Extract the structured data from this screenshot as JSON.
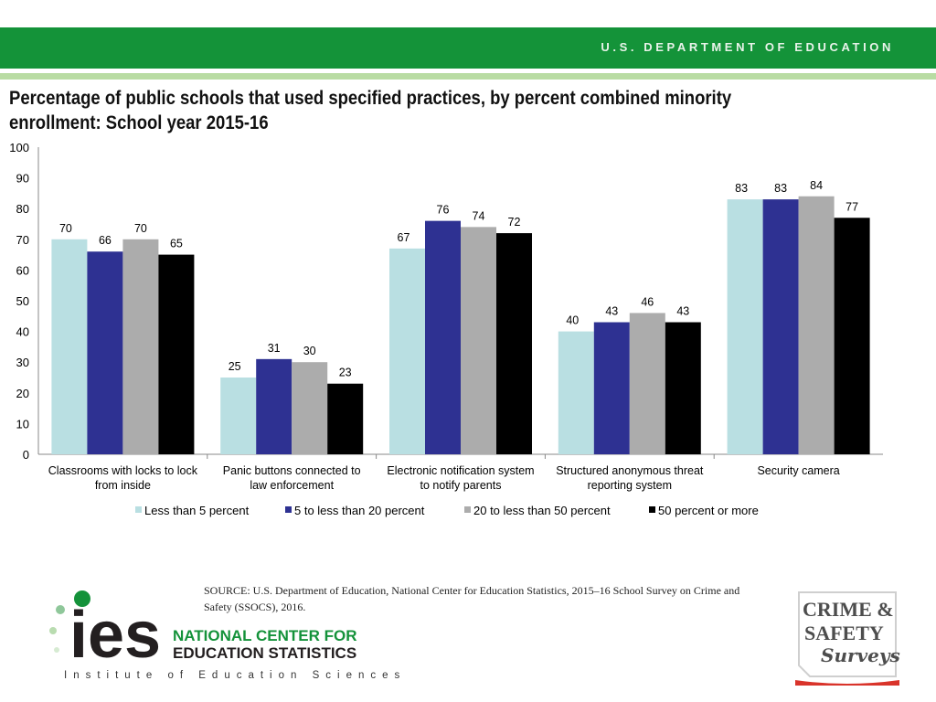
{
  "header": {
    "department": "U.S. DEPARTMENT OF EDUCATION"
  },
  "title": "Percentage of public schools that used specified practices, by percent combined minority enrollment: School year 2015-16",
  "chart_data": {
    "type": "bar",
    "title": "Percentage of public schools that used specified practices, by percent combined minority enrollment: School year 2015-16",
    "xlabel": "",
    "ylabel": "",
    "ylim": [
      0,
      100
    ],
    "yticks": [
      0,
      10,
      20,
      30,
      40,
      50,
      60,
      70,
      80,
      90,
      100
    ],
    "grid": false,
    "legend_position": "bottom",
    "categories": [
      [
        "Classrooms with locks to lock",
        "from inside"
      ],
      [
        "Panic buttons connected to",
        "law enforcement"
      ],
      [
        "Electronic notification system",
        "to notify parents"
      ],
      [
        "Structured anonymous threat",
        "reporting system"
      ],
      [
        "Security camera"
      ]
    ],
    "series": [
      {
        "name": "Less than 5 percent",
        "color": "#b9dfe2",
        "values": [
          70,
          25,
          67,
          40,
          83
        ]
      },
      {
        "name": "5 to less than 20 percent",
        "color": "#2e3192",
        "values": [
          66,
          31,
          76,
          43,
          83
        ]
      },
      {
        "name": "20 to less than 50 percent",
        "color": "#acacac",
        "values": [
          70,
          30,
          74,
          46,
          84
        ]
      },
      {
        "name": "50 percent or more",
        "color": "#000000",
        "values": [
          65,
          23,
          72,
          43,
          77
        ]
      }
    ]
  },
  "source": "SOURCE: U.S. Department of Education, National Center for Education Statistics, 2015–16 School Survey on Crime and Safety (SSOCS), 2016.",
  "logos": {
    "ies_letters": "ies",
    "ies_line1": "NATIONAL CENTER FOR",
    "ies_line2": "EDUCATION STATISTICS",
    "ies_sub": "Institute of Education Sciences",
    "crime_line1": "CRIME &",
    "crime_line2": "SAFETY",
    "crime_line3": "Surveys"
  }
}
